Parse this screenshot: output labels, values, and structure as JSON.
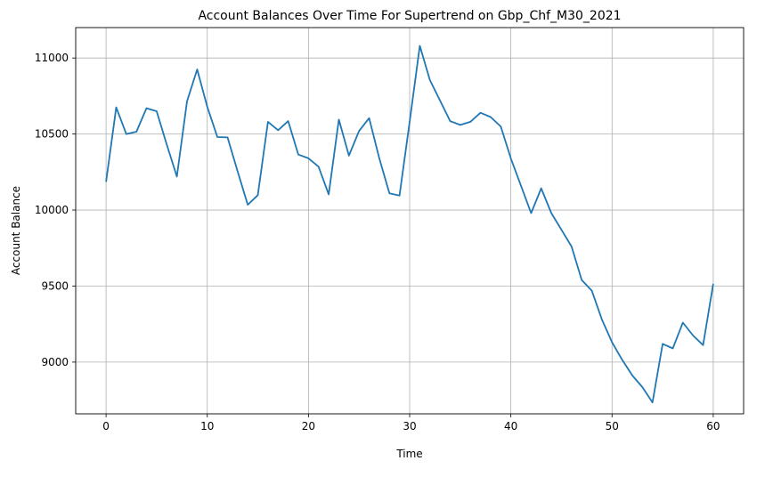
{
  "chart_data": {
    "type": "line",
    "title": "Account Balances Over Time For Supertrend on Gbp_Chf_M30_2021",
    "xlabel": "Time",
    "ylabel": "Account Balance",
    "xlim": [
      -3,
      63
    ],
    "ylim": [
      8660,
      11200
    ],
    "xticks": [
      0,
      10,
      20,
      30,
      40,
      50,
      60
    ],
    "yticks": [
      9000,
      9500,
      10000,
      10500,
      11000
    ],
    "grid": true,
    "line_color": "#1f77b4",
    "series": [
      {
        "x": [
          0,
          1,
          2,
          3,
          4,
          5,
          6,
          7,
          8,
          9,
          10,
          11,
          12,
          13,
          14,
          15,
          16,
          17,
          18,
          19,
          20,
          21,
          22,
          23,
          24,
          25,
          26,
          27,
          28,
          29,
          30,
          31,
          32,
          33,
          34,
          35,
          36,
          37,
          38,
          39,
          40,
          41,
          42,
          43,
          44,
          45,
          46,
          47,
          48,
          49,
          50,
          51,
          52,
          53,
          54,
          55,
          56,
          57,
          58,
          59,
          60
        ],
        "values": [
          10185,
          10675,
          10500,
          10515,
          10670,
          10650,
          10430,
          10220,
          10715,
          10925,
          10680,
          10480,
          10478,
          10255,
          10035,
          10098,
          10580,
          10525,
          10585,
          10365,
          10340,
          10285,
          10103,
          10595,
          10358,
          10520,
          10605,
          10340,
          10110,
          10095,
          10580,
          11080,
          10855,
          10720,
          10585,
          10560,
          10580,
          10640,
          10612,
          10550,
          10340,
          10160,
          9980,
          10143,
          9980,
          9870,
          9760,
          9540,
          9470,
          9280,
          9130,
          9015,
          8912,
          8835,
          8735,
          9120,
          9090,
          9260,
          9175,
          9112,
          9515
        ]
      }
    ]
  }
}
